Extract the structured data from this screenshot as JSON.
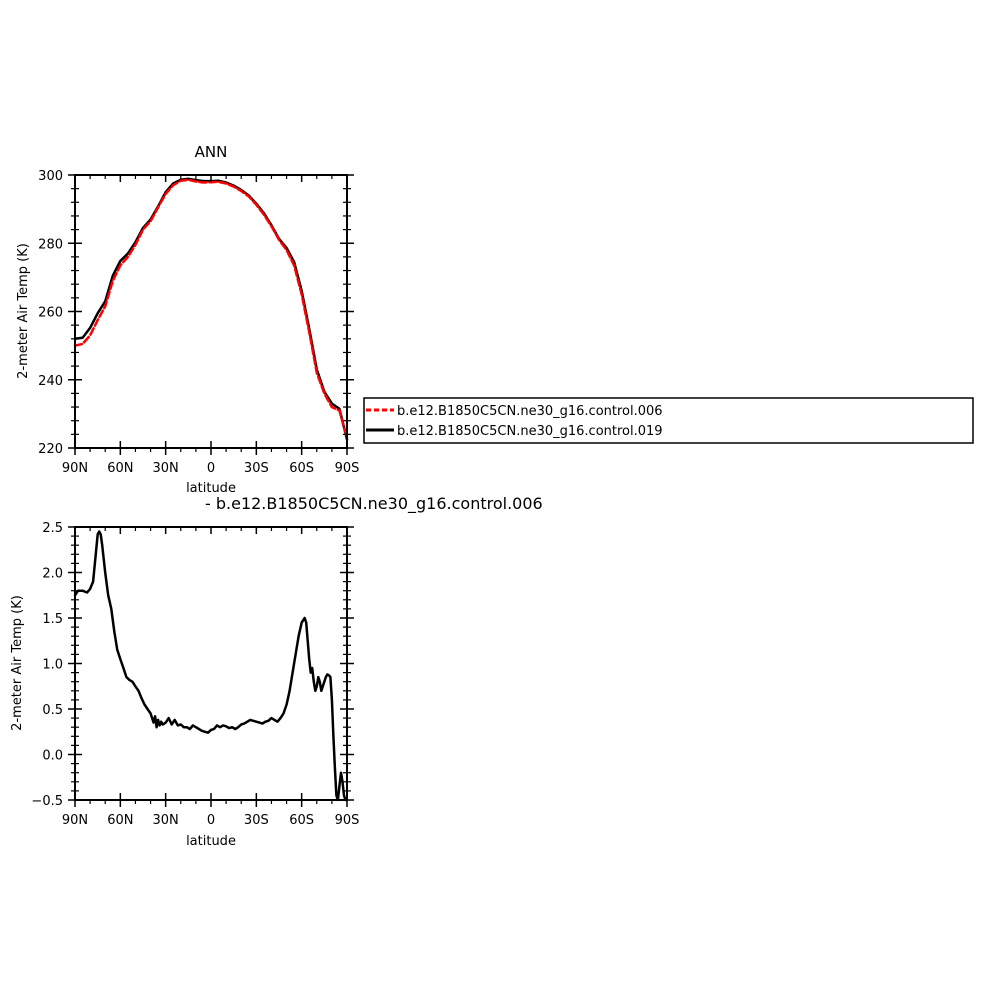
{
  "chart_data": [
    {
      "type": "line",
      "title": "ANN",
      "xlabel": "latitude",
      "ylabel": "2-meter Air Temp (K)",
      "xlim": [
        90,
        -90
      ],
      "ylim": [
        220,
        300
      ],
      "x_tick_values": [
        90,
        60,
        30,
        0,
        -30,
        -60,
        -90
      ],
      "x_tick_labels": [
        "90N",
        "60N",
        "30N",
        "0",
        "30S",
        "60S",
        "90S"
      ],
      "y_tick_values": [
        220,
        240,
        260,
        280,
        300
      ],
      "y_tick_labels": [
        "220",
        "240",
        "260",
        "280",
        "300"
      ],
      "legend_position": "right",
      "series": [
        {
          "name": "b.e12.B1850C5CN.ne30_g16.control.006",
          "color": "#ff0000",
          "dashed": true,
          "x": [
            90,
            85,
            80,
            75,
            70,
            65,
            60,
            55,
            50,
            45,
            40,
            35,
            30,
            25,
            20,
            15,
            10,
            5,
            0,
            -5,
            -10,
            -15,
            -20,
            -25,
            -30,
            -35,
            -40,
            -45,
            -50,
            -55,
            -60,
            -65,
            -70,
            -75,
            -80,
            -85,
            -90
          ],
          "values": [
            250.0,
            250.5,
            253.0,
            257.5,
            261.5,
            269.0,
            273.5,
            276.0,
            279.5,
            284.0,
            286.5,
            290.5,
            294.5,
            297.0,
            298.3,
            298.6,
            298.1,
            297.8,
            297.9,
            298.0,
            297.5,
            296.6,
            295.3,
            293.7,
            291.3,
            288.4,
            285.0,
            281.0,
            278.0,
            273.5,
            265.0,
            254.0,
            242.0,
            236.0,
            232.0,
            231.0,
            223.0
          ]
        },
        {
          "name": "b.e12.B1850C5CN.ne30_g16.control.019",
          "color": "#000000",
          "dashed": false,
          "x": [
            90,
            85,
            80,
            75,
            70,
            65,
            60,
            55,
            50,
            45,
            40,
            35,
            30,
            25,
            20,
            15,
            10,
            5,
            0,
            -5,
            -10,
            -15,
            -20,
            -25,
            -30,
            -35,
            -40,
            -45,
            -50,
            -55,
            -60,
            -65,
            -70,
            -75,
            -80,
            -85,
            -90
          ],
          "values": [
            252.0,
            252.3,
            255.2,
            259.5,
            263.0,
            270.5,
            274.8,
            277.0,
            280.3,
            284.5,
            287.0,
            290.8,
            295.0,
            297.5,
            298.6,
            298.9,
            298.5,
            298.2,
            298.2,
            298.3,
            297.8,
            296.9,
            295.6,
            294.0,
            291.6,
            288.8,
            285.3,
            281.3,
            278.6,
            274.5,
            266.0,
            255.0,
            243.0,
            236.5,
            233.0,
            231.5,
            222.5
          ]
        }
      ]
    },
    {
      "type": "line",
      "title": "- b.e12.B1850C5CN.ne30_g16.control.006",
      "xlabel": "latitude",
      "ylabel": "2-meter Air Temp (K)",
      "xlim": [
        90,
        -90
      ],
      "ylim": [
        -0.5,
        2.5
      ],
      "x_tick_values": [
        90,
        60,
        30,
        0,
        -30,
        -60,
        -90
      ],
      "x_tick_labels": [
        "90N",
        "60N",
        "30N",
        "0",
        "30S",
        "60S",
        "90S"
      ],
      "y_tick_values": [
        -0.5,
        0.0,
        0.5,
        1.0,
        1.5,
        2.0,
        2.5
      ],
      "y_tick_labels": [
        "−0.5",
        "0.0",
        "0.5",
        "1.0",
        "1.5",
        "2.0",
        "2.5"
      ],
      "series": [
        {
          "color": "#000000",
          "x": [
            90,
            88,
            85,
            82,
            80,
            78,
            76,
            75,
            74,
            73,
            72,
            70,
            68,
            66,
            64,
            62,
            60,
            58,
            56,
            54,
            52,
            50,
            48,
            46,
            44,
            42,
            40,
            38,
            37,
            36,
            35,
            34,
            33,
            32,
            31,
            30,
            28,
            26,
            24,
            22,
            20,
            18,
            16,
            14,
            12,
            10,
            8,
            6,
            4,
            2,
            0,
            -2,
            -4,
            -6,
            -8,
            -10,
            -12,
            -14,
            -16,
            -18,
            -20,
            -22,
            -24,
            -26,
            -28,
            -30,
            -32,
            -34,
            -36,
            -38,
            -40,
            -42,
            -44,
            -46,
            -48,
            -50,
            -52,
            -54,
            -56,
            -58,
            -60,
            -62,
            -63,
            -64,
            -65,
            -66,
            -67,
            -68,
            -69,
            -70,
            -71,
            -72,
            -73,
            -74,
            -75,
            -76,
            -77,
            -78,
            -79,
            -80,
            -81,
            -82,
            -83,
            -84,
            -85,
            -86,
            -87,
            -88,
            -89,
            -90
          ],
          "values": [
            1.75,
            1.8,
            1.8,
            1.78,
            1.82,
            1.9,
            2.25,
            2.42,
            2.45,
            2.42,
            2.3,
            2.0,
            1.75,
            1.6,
            1.35,
            1.15,
            1.05,
            0.95,
            0.85,
            0.82,
            0.8,
            0.75,
            0.7,
            0.62,
            0.55,
            0.5,
            0.45,
            0.35,
            0.42,
            0.3,
            0.38,
            0.32,
            0.36,
            0.33,
            0.34,
            0.35,
            0.4,
            0.33,
            0.38,
            0.32,
            0.33,
            0.3,
            0.3,
            0.28,
            0.32,
            0.3,
            0.28,
            0.26,
            0.25,
            0.24,
            0.27,
            0.28,
            0.32,
            0.3,
            0.32,
            0.31,
            0.29,
            0.3,
            0.28,
            0.3,
            0.33,
            0.34,
            0.36,
            0.38,
            0.37,
            0.36,
            0.35,
            0.34,
            0.36,
            0.37,
            0.4,
            0.38,
            0.36,
            0.4,
            0.45,
            0.55,
            0.7,
            0.9,
            1.1,
            1.3,
            1.45,
            1.5,
            1.45,
            1.25,
            1.05,
            0.9,
            0.95,
            0.8,
            0.7,
            0.75,
            0.85,
            0.8,
            0.7,
            0.75,
            0.8,
            0.85,
            0.88,
            0.87,
            0.85,
            0.6,
            0.2,
            -0.15,
            -0.45,
            -0.5,
            -0.35,
            -0.2,
            -0.3,
            -0.45,
            -0.5,
            -0.5
          ]
        }
      ]
    }
  ]
}
